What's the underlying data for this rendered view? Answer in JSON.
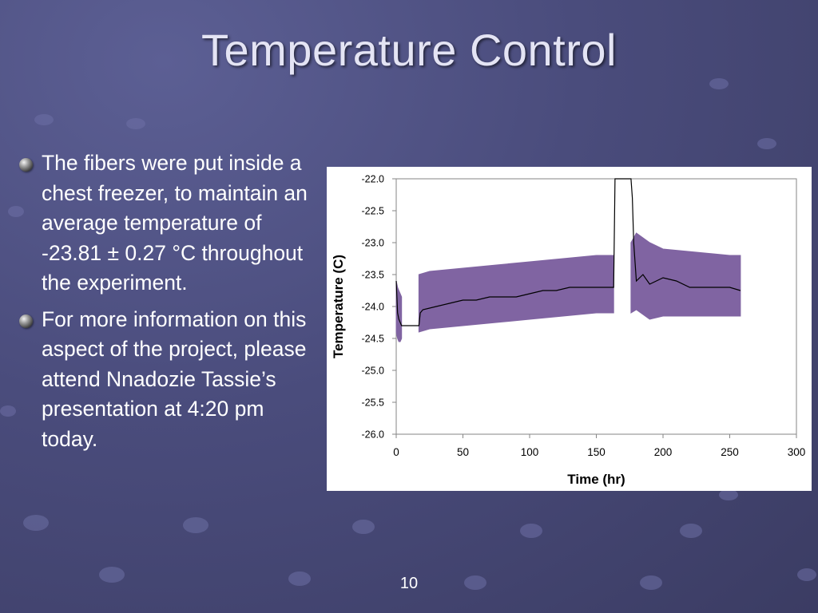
{
  "slide": {
    "title": "Temperature Control",
    "bullets": [
      "The fibers were put inside a chest freezer, to maintain an average temperature of -23.81 ± 0.27 °C throughout the experiment.",
      "For more information on this aspect of the project, please attend Nnadozie Tassie’s presentation at 4:20 pm today."
    ],
    "page_number": "10"
  },
  "colors": {
    "band": "#8064a2",
    "mean_line": "#000000",
    "background": "#4a4c7c"
  },
  "chart_data": {
    "type": "line",
    "title": "",
    "xlabel": "Time (hr)",
    "ylabel": "Temperature (C)",
    "xlim": [
      0,
      300
    ],
    "ylim": [
      -26.0,
      -22.0
    ],
    "xticks": [
      "0",
      "50",
      "100",
      "150",
      "200",
      "250",
      "300"
    ],
    "yticks": [
      "-22.0",
      "-22.5",
      "-23.0",
      "-23.5",
      "-24.0",
      "-24.5",
      "-25.0",
      "-25.5",
      "-26.0"
    ],
    "grid": false,
    "series": [
      {
        "style": "band",
        "segments": [
          {
            "x": [
              0,
              1,
              2,
              3,
              4
            ],
            "upper": [
              -23.6,
              -23.7,
              -23.75,
              -23.8,
              -23.85
            ],
            "lower": [
              -24.4,
              -24.5,
              -24.55,
              -24.55,
              -24.5
            ]
          },
          {
            "x": [
              17,
              25,
              50,
              75,
              100,
              125,
              150,
              163
            ],
            "upper": [
              -23.5,
              -23.45,
              -23.4,
              -23.35,
              -23.3,
              -23.25,
              -23.2,
              -23.2
            ],
            "lower": [
              -24.4,
              -24.35,
              -24.3,
              -24.25,
              -24.2,
              -24.15,
              -24.1,
              -24.1
            ]
          },
          {
            "x": [
              176,
              180,
              190,
              200,
              225,
              250,
              258
            ],
            "upper": [
              -23.0,
              -22.85,
              -23.0,
              -23.1,
              -23.15,
              -23.2,
              -23.2
            ],
            "lower": [
              -24.1,
              -24.05,
              -24.2,
              -24.15,
              -24.15,
              -24.15,
              -24.15
            ]
          }
        ]
      },
      {
        "style": "line",
        "x": [
          0,
          1,
          2,
          3,
          4,
          5,
          17,
          18,
          20,
          30,
          40,
          50,
          60,
          70,
          80,
          90,
          100,
          110,
          120,
          130,
          140,
          150,
          160,
          163,
          164,
          165,
          170,
          175,
          176,
          177,
          178,
          180,
          185,
          190,
          200,
          210,
          220,
          230,
          240,
          250,
          258
        ],
        "y": [
          -23.6,
          -24.1,
          -24.2,
          -24.25,
          -24.3,
          -24.3,
          -24.3,
          -24.1,
          -24.05,
          -24.0,
          -23.95,
          -23.9,
          -23.9,
          -23.85,
          -23.85,
          -23.85,
          -23.8,
          -23.75,
          -23.75,
          -23.7,
          -23.7,
          -23.7,
          -23.7,
          -23.7,
          -22.0,
          -22.0,
          -22.0,
          -22.0,
          -22.0,
          -22.3,
          -23.0,
          -23.6,
          -23.5,
          -23.65,
          -23.55,
          -23.6,
          -23.7,
          -23.7,
          -23.7,
          -23.7,
          -23.75
        ]
      }
    ]
  }
}
